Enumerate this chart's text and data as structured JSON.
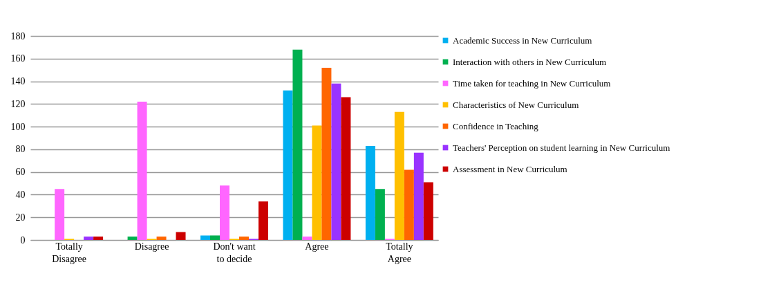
{
  "chart_data": {
    "type": "bar",
    "categories": [
      "Totally Disagree",
      "Disagree",
      "Don't want to decide",
      "Agree",
      "Totally Agree"
    ],
    "series": [
      {
        "name": "Academic Success in New Curriculum",
        "color": "#00b0f0",
        "values": [
          0,
          0,
          4,
          132,
          83
        ]
      },
      {
        "name": "Interaction with others in New Curriculum",
        "color": "#00b050",
        "values": [
          0,
          3,
          4,
          168,
          45
        ]
      },
      {
        "name": "Time taken for teaching in New Curriculum",
        "color": "#ff66ff",
        "values": [
          45,
          122,
          48,
          3,
          1
        ]
      },
      {
        "name": "Characteristics of New Curriculum",
        "color": "#ffc000",
        "values": [
          1,
          1,
          1,
          101,
          113
        ]
      },
      {
        "name": "Confidence in Teaching",
        "color": "#ff6600",
        "values": [
          0,
          3,
          3,
          152,
          62
        ]
      },
      {
        "name": "Teachers' Perception on student learning in New Curriculum",
        "color": "#9933ff",
        "values": [
          3,
          0,
          1,
          138,
          77
        ]
      },
      {
        "name": "Assessment in New Curriculum",
        "color": "#cc0000",
        "values": [
          3,
          7,
          34,
          126,
          51
        ]
      }
    ],
    "ylim": [
      0,
      180
    ],
    "yticks": [
      0,
      20,
      40,
      60,
      80,
      100,
      120,
      140,
      160,
      180
    ],
    "grid": "y",
    "legend": "right"
  }
}
